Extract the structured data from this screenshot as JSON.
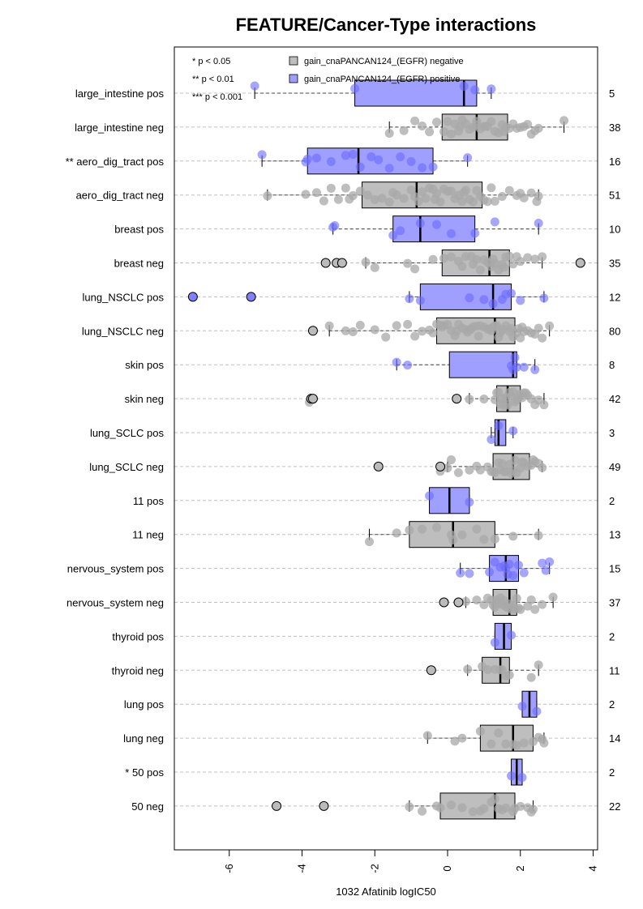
{
  "chart_data": {
    "type": "boxplot",
    "title": "FEATURE/Cancer-Type interactions",
    "xlabel": "1032 Afatinib logIC50",
    "xlim": [
      -7.2,
      4.4
    ],
    "x_ticks": [
      -6,
      -4,
      -2,
      0,
      2,
      4
    ],
    "x_tick_labels": [
      "-6",
      "-4",
      "-2",
      "0",
      "2",
      "4"
    ],
    "legend": {
      "position": "top",
      "significance": [
        "* p < 0.05",
        "** p < 0.01",
        "*** p < 0.001"
      ],
      "series": [
        {
          "name": "gain_cnaPANCAN124_(EGFR) negative",
          "color": "#bebebe"
        },
        {
          "name": "gain_cnaPANCAN124_(EGFR) positive",
          "color": "#9f9fff"
        }
      ]
    },
    "colors": {
      "negative_box": "#bebebe",
      "positive_box": "#9f9fff",
      "negative_point": "#a8a8a8",
      "positive_point": "#6a6aff",
      "grid": "#c0c0c0"
    },
    "groups": [
      {
        "label": "large_intestine pos",
        "type": "pos",
        "n": "5",
        "whisker_low": -5.3,
        "q1": -2.55,
        "median": 0.45,
        "q3": 0.8,
        "whisker_high": 1.2,
        "outliers": [],
        "points": [
          -5.3,
          -2.55,
          0.45,
          0.75,
          1.2
        ]
      },
      {
        "label": "large_intestine neg",
        "type": "neg",
        "n": "38",
        "whisker_low": -1.6,
        "q1": -0.15,
        "median": 0.8,
        "q3": 1.65,
        "whisker_high": 3.2,
        "outliers": [],
        "points": [
          -1.6,
          -1.2,
          -0.9,
          -0.7,
          -0.5,
          -0.3,
          -0.1,
          0.0,
          0.1,
          0.2,
          0.3,
          0.4,
          0.5,
          0.6,
          0.7,
          0.8,
          0.8,
          0.9,
          1.0,
          1.1,
          1.2,
          1.3,
          1.4,
          1.5,
          1.6,
          1.7,
          1.8,
          1.9,
          2.0,
          2.1,
          2.2,
          2.3,
          2.4,
          2.5,
          0.35,
          1.05,
          1.55,
          3.2
        ]
      },
      {
        "label": "** aero_dig_tract pos",
        "type": "pos",
        "n": "16",
        "whisker_low": -5.1,
        "q1": -3.85,
        "median": -2.45,
        "q3": -0.4,
        "whisker_high": 0.55,
        "outliers": [],
        "points": [
          -5.1,
          -3.9,
          -3.85,
          -3.6,
          -3.2,
          -2.8,
          -2.6,
          -2.4,
          -2.1,
          -1.9,
          -1.6,
          -1.3,
          -1.0,
          -0.7,
          -0.4,
          0.55
        ]
      },
      {
        "label": "aero_dig_tract neg",
        "type": "neg",
        "n": "51",
        "whisker_low": -4.95,
        "q1": -2.35,
        "median": -0.85,
        "q3": 0.95,
        "whisker_high": 2.5,
        "outliers": [],
        "points": [
          -4.95,
          -3.9,
          -3.6,
          -3.4,
          -3.2,
          -3.0,
          -2.8,
          -2.6,
          -2.4,
          -2.2,
          -2.0,
          -1.8,
          -1.6,
          -1.4,
          -1.2,
          -1.0,
          -0.9,
          -0.8,
          -0.7,
          -0.6,
          -0.5,
          -0.4,
          -0.3,
          -0.2,
          -0.1,
          0.0,
          0.1,
          0.2,
          0.3,
          0.4,
          0.5,
          0.6,
          0.7,
          0.8,
          0.9,
          1.0,
          1.1,
          1.3,
          1.5,
          1.7,
          1.9,
          2.1,
          2.3,
          2.45,
          -1.5,
          -2.7,
          -0.35,
          0.45,
          1.2,
          2.0,
          2.5
        ]
      },
      {
        "label": "breast pos",
        "type": "pos",
        "n": "10",
        "whisker_low": -3.15,
        "q1": -1.5,
        "median": -0.75,
        "q3": 0.75,
        "whisker_high": 2.5,
        "outliers": [],
        "points": [
          -3.15,
          -3.1,
          -1.5,
          -1.3,
          -0.75,
          -0.3,
          0.1,
          0.75,
          1.3,
          2.5
        ]
      },
      {
        "label": "breast neg",
        "type": "neg",
        "n": "35",
        "whisker_low": -2.25,
        "q1": -0.15,
        "median": 1.15,
        "q3": 1.7,
        "whisker_high": 2.6,
        "outliers": [
          -3.05,
          -3.35,
          -2.9,
          3.65
        ],
        "points": [
          -2.25,
          -2.0,
          -1.1,
          -0.9,
          -0.4,
          -0.1,
          0.1,
          0.3,
          0.5,
          0.7,
          0.8,
          0.9,
          1.0,
          1.1,
          1.15,
          1.2,
          1.3,
          1.4,
          1.5,
          1.6,
          1.7,
          1.8,
          1.9,
          2.0,
          2.2,
          2.4,
          2.6,
          0.4,
          1.25,
          1.55,
          0.65
        ]
      },
      {
        "label": "lung_NSCLC pos",
        "type": "pos",
        "n": "12",
        "whisker_low": -1.05,
        "q1": -0.75,
        "median": 1.25,
        "q3": 1.75,
        "whisker_high": 2.65,
        "outliers": [
          -7.0,
          -5.4
        ],
        "points": [
          -1.05,
          -0.75,
          0.6,
          1.0,
          1.25,
          1.5,
          1.75,
          2.0,
          2.65,
          1.6
        ]
      },
      {
        "label": "lung_NSCLC neg",
        "type": "neg",
        "n": "80",
        "whisker_low": -3.25,
        "q1": -0.3,
        "median": 1.3,
        "q3": 1.85,
        "whisker_high": 2.8,
        "outliers": [
          -3.7
        ],
        "points": [
          -3.25,
          -2.8,
          -2.6,
          -2.4,
          -2.0,
          -1.7,
          -1.4,
          -1.1,
          -0.9,
          -0.7,
          -0.5,
          -0.4,
          -0.3,
          -0.2,
          -0.1,
          0.0,
          0.1,
          0.2,
          0.3,
          0.4,
          0.5,
          0.6,
          0.7,
          0.8,
          0.9,
          1.0,
          1.1,
          1.2,
          1.3,
          1.35,
          1.4,
          1.5,
          1.6,
          1.7,
          1.8,
          1.9,
          2.0,
          2.1,
          2.2,
          2.3,
          2.4,
          2.5,
          2.6,
          2.8,
          0.25,
          0.55,
          0.85,
          1.15,
          1.45,
          1.75,
          2.05,
          -0.15,
          0.65,
          1.25,
          1.95
        ]
      },
      {
        "label": "skin pos",
        "type": "pos",
        "n": "8",
        "whisker_low": -1.4,
        "q1": 0.05,
        "median": 1.8,
        "q3": 1.9,
        "whisker_high": 2.4,
        "outliers": [],
        "points": [
          -1.4,
          -1.1,
          1.75,
          1.8,
          1.85,
          1.9,
          2.1,
          2.4
        ]
      },
      {
        "label": "skin neg",
        "type": "neg",
        "n": "42",
        "whisker_low": 0.6,
        "q1": 1.35,
        "median": 1.65,
        "q3": 2.0,
        "whisker_high": 2.65,
        "outliers": [
          -3.75,
          -3.7,
          0.25
        ],
        "points": [
          0.6,
          1.0,
          1.3,
          1.4,
          1.5,
          1.55,
          1.6,
          1.65,
          1.7,
          1.75,
          1.8,
          1.9,
          2.0,
          2.1,
          2.2,
          2.3,
          2.4,
          2.5,
          2.65,
          1.35,
          1.45,
          1.85,
          1.95,
          2.05,
          2.15,
          -3.8
        ]
      },
      {
        "label": "lung_SCLC pos",
        "type": "pos",
        "n": "3",
        "whisker_low": 1.2,
        "q1": 1.3,
        "median": 1.4,
        "q3": 1.6,
        "whisker_high": 1.8,
        "outliers": [],
        "points": [
          1.2,
          1.4,
          1.8
        ]
      },
      {
        "label": "lung_SCLC neg",
        "type": "neg",
        "n": "49",
        "whisker_low": 0.0,
        "q1": 1.25,
        "median": 1.8,
        "q3": 2.25,
        "whisker_high": 2.6,
        "outliers": [
          -1.9,
          -0.2
        ],
        "points": [
          -0.2,
          0.0,
          0.3,
          0.6,
          0.9,
          1.1,
          1.2,
          1.3,
          1.4,
          1.5,
          1.6,
          1.7,
          1.8,
          1.85,
          1.9,
          2.0,
          2.1,
          2.2,
          2.3,
          2.4,
          2.5,
          2.6,
          1.25,
          1.55,
          1.75,
          2.05,
          2.35,
          0.1,
          0.8,
          1.45
        ]
      },
      {
        "label": "11 pos",
        "type": "pos",
        "n": "2",
        "whisker_low": -0.5,
        "q1": -0.5,
        "median": 0.05,
        "q3": 0.6,
        "whisker_high": 0.6,
        "outliers": [],
        "points": [
          -0.5,
          0.6
        ]
      },
      {
        "label": "11 neg",
        "type": "neg",
        "n": "13",
        "whisker_low": -2.15,
        "q1": -1.05,
        "median": 0.15,
        "q3": 1.3,
        "whisker_high": 2.5,
        "outliers": [],
        "points": [
          -2.15,
          -1.4,
          -1.05,
          -0.7,
          -0.3,
          0.1,
          0.15,
          0.4,
          0.8,
          1.0,
          1.3,
          1.8,
          2.5
        ]
      },
      {
        "label": "nervous_system pos",
        "type": "pos",
        "n": "15",
        "whisker_low": 0.35,
        "q1": 1.15,
        "median": 1.6,
        "q3": 1.95,
        "whisker_high": 2.8,
        "outliers": [],
        "points": [
          0.35,
          0.6,
          1.15,
          1.3,
          1.45,
          1.55,
          1.6,
          1.65,
          1.7,
          1.8,
          1.95,
          2.1,
          2.6,
          2.7,
          2.8
        ]
      },
      {
        "label": "nervous_system neg",
        "type": "neg",
        "n": "37",
        "whisker_low": 0.5,
        "q1": 1.25,
        "median": 1.7,
        "q3": 1.9,
        "whisker_high": 2.9,
        "outliers": [
          -0.1,
          0.3
        ],
        "points": [
          0.5,
          0.8,
          1.0,
          1.1,
          1.2,
          1.25,
          1.3,
          1.4,
          1.5,
          1.55,
          1.6,
          1.65,
          1.7,
          1.75,
          1.8,
          1.85,
          1.9,
          2.0,
          2.2,
          2.4,
          2.6,
          2.9,
          1.35,
          1.45,
          1.95,
          2.3
        ]
      },
      {
        "label": "thyroid pos",
        "type": "pos",
        "n": "2",
        "whisker_low": 1.3,
        "q1": 1.3,
        "median": 1.55,
        "q3": 1.75,
        "whisker_high": 1.75,
        "outliers": [],
        "points": [
          1.3,
          1.75
        ]
      },
      {
        "label": "thyroid neg",
        "type": "neg",
        "n": "11",
        "whisker_low": 0.55,
        "q1": 0.95,
        "median": 1.45,
        "q3": 1.7,
        "whisker_high": 2.5,
        "outliers": [
          -0.45
        ],
        "points": [
          0.55,
          0.95,
          1.1,
          1.3,
          1.45,
          1.5,
          1.6,
          1.7,
          2.3,
          2.5
        ]
      },
      {
        "label": "lung pos",
        "type": "pos",
        "n": "2",
        "whisker_low": 2.05,
        "q1": 2.05,
        "median": 2.25,
        "q3": 2.45,
        "whisker_high": 2.45,
        "outliers": [],
        "points": [
          2.05,
          2.45
        ]
      },
      {
        "label": "lung neg",
        "type": "neg",
        "n": "14",
        "whisker_low": -0.55,
        "q1": 0.9,
        "median": 1.8,
        "q3": 2.35,
        "whisker_high": 2.65,
        "outliers": [],
        "points": [
          -0.55,
          0.2,
          0.4,
          0.9,
          1.2,
          1.6,
          1.8,
          1.9,
          2.1,
          2.35,
          2.5,
          2.6,
          2.65,
          1.4
        ]
      },
      {
        "label": "* 50 pos",
        "type": "pos",
        "n": "2",
        "whisker_low": 1.75,
        "q1": 1.75,
        "median": 1.9,
        "q3": 2.05,
        "whisker_high": 2.05,
        "outliers": [],
        "points": [
          1.75,
          2.05
        ]
      },
      {
        "label": "50 neg",
        "type": "neg",
        "n": "22",
        "whisker_low": -1.05,
        "q1": -0.2,
        "median": 1.3,
        "q3": 1.85,
        "whisker_high": 2.35,
        "outliers": [
          -4.7,
          -3.4
        ],
        "points": [
          -1.05,
          -0.7,
          -0.3,
          -0.2,
          0.1,
          0.4,
          0.7,
          1.0,
          1.2,
          1.3,
          1.4,
          1.6,
          1.8,
          1.85,
          2.0,
          2.2,
          2.35,
          0.9,
          1.5,
          2.3
        ]
      }
    ]
  }
}
